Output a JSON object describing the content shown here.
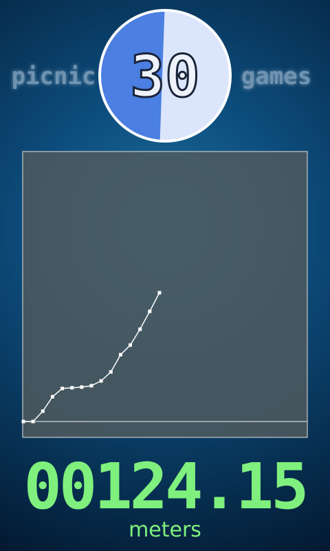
{
  "brand_left": "picnic",
  "brand_right": "games",
  "timer": "30",
  "chart_data": {
    "type": "line",
    "values": [
      0,
      0,
      15,
      36,
      48,
      49,
      50,
      52,
      59,
      72,
      97,
      111,
      134,
      160,
      187
    ],
    "color": "#ffffff"
  },
  "score": "00124.15",
  "unit": "meters"
}
